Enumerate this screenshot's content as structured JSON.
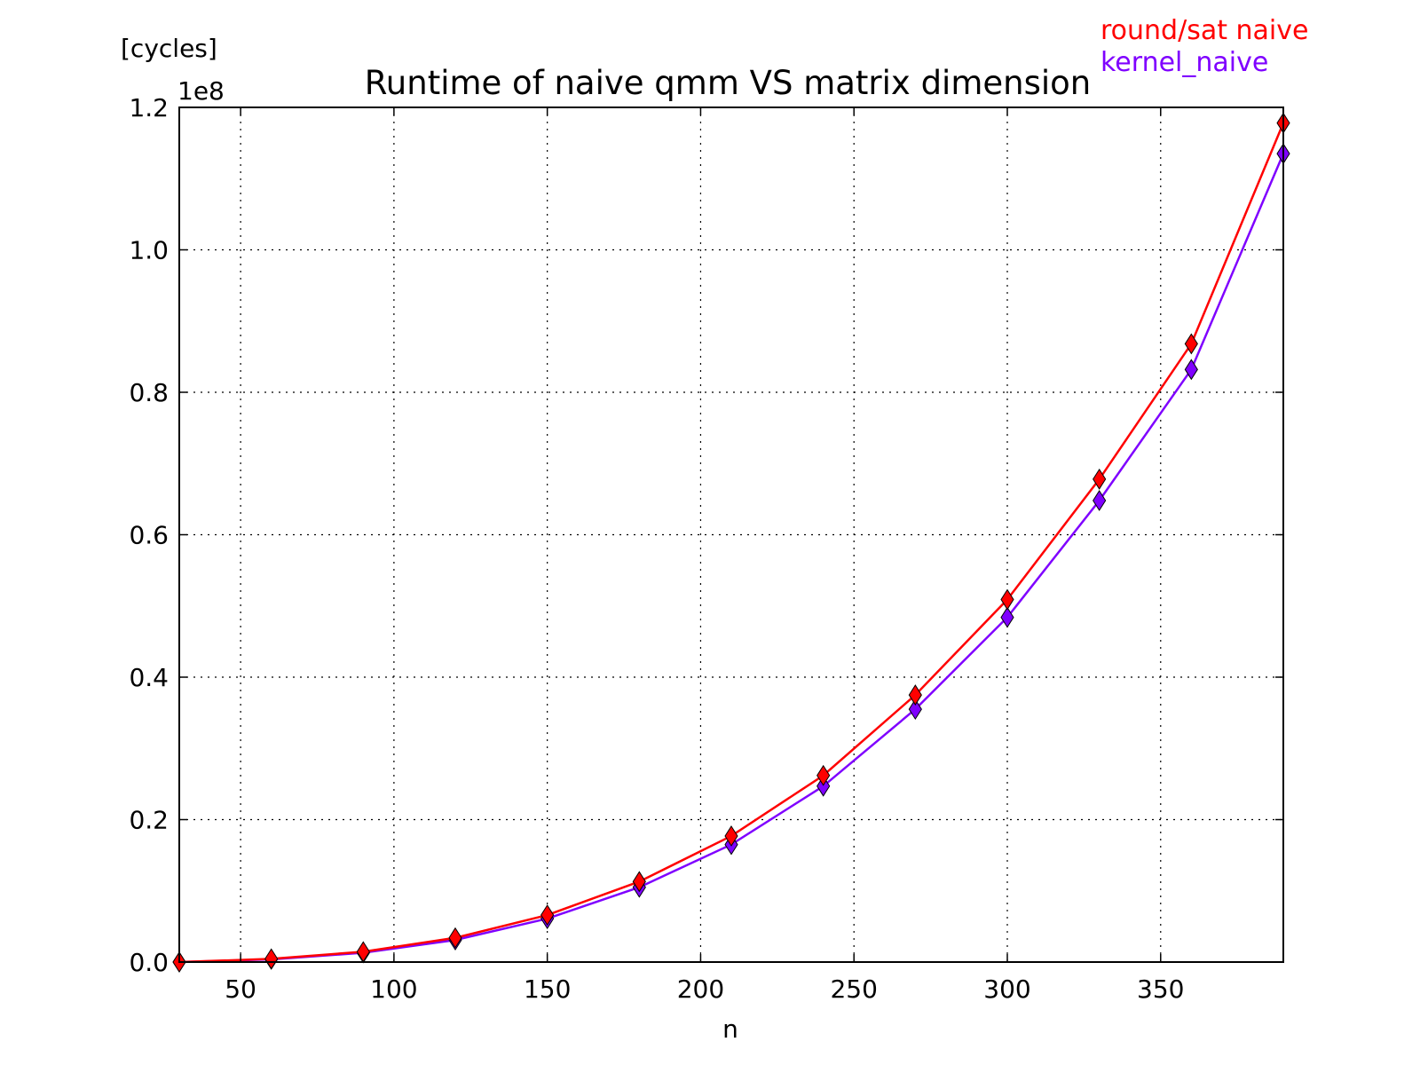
{
  "chart_data": {
    "type": "line",
    "title": "Runtime of naive qmm VS matrix dimension",
    "xlabel": "n",
    "ylabel": "[cycles]",
    "y_multiplier_label": "1e8",
    "xlim": [
      30,
      390
    ],
    "ylim": [
      0.0,
      1.2
    ],
    "x_ticks": [
      50,
      100,
      150,
      200,
      250,
      300,
      350
    ],
    "y_ticks": [
      "0.0",
      "0.2",
      "0.4",
      "0.6",
      "0.8",
      "1.0",
      "1.2"
    ],
    "grid": true,
    "legend_position": "top-right",
    "x": [
      30,
      60,
      90,
      120,
      150,
      180,
      210,
      240,
      270,
      300,
      330,
      360,
      390
    ],
    "series": [
      {
        "name": "round/sat naive",
        "color": "#ff0000",
        "marker": "diamond",
        "values": [
          0.0,
          0.0045,
          0.0145,
          0.034,
          0.066,
          0.113,
          0.177,
          0.262,
          0.375,
          0.509,
          0.678,
          0.868,
          1.178
        ]
      },
      {
        "name": "kernel_naive",
        "color": "#7f00ff",
        "marker": "diamond",
        "values": [
          0.0,
          0.0038,
          0.013,
          0.031,
          0.061,
          0.105,
          0.165,
          0.247,
          0.355,
          0.484,
          0.648,
          0.832,
          1.135
        ]
      }
    ]
  }
}
